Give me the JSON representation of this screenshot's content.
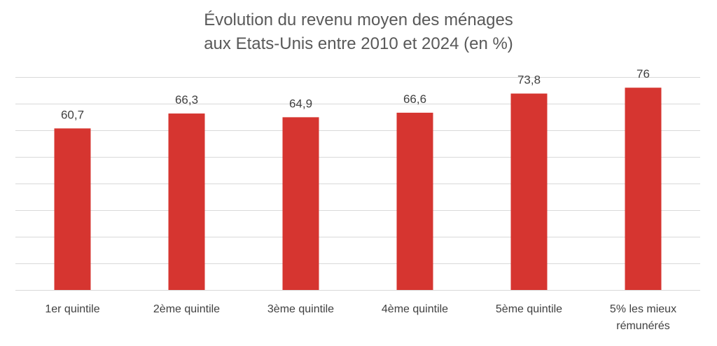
{
  "chart_data": {
    "type": "bar",
    "title_lines": [
      "Évolution du revenu moyen des ménages",
      "aux Etats-Unis entre 2010 et 2024 (en %)"
    ],
    "categories": [
      [
        "1er quintile"
      ],
      [
        "2ème quintile"
      ],
      [
        "3ème quintile"
      ],
      [
        "4ème quintile"
      ],
      [
        "5ème quintile"
      ],
      [
        "5% les mieux",
        "rémunérés"
      ]
    ],
    "values": [
      60.7,
      66.3,
      64.9,
      66.6,
      73.8,
      76
    ],
    "data_labels": [
      "60,7",
      "66,3",
      "64,9",
      "66,6",
      "73,8",
      "76"
    ],
    "ylim": [
      0,
      80
    ],
    "grid": true,
    "bar_color": "#d63530",
    "grid_color": "#d9d9d9"
  }
}
